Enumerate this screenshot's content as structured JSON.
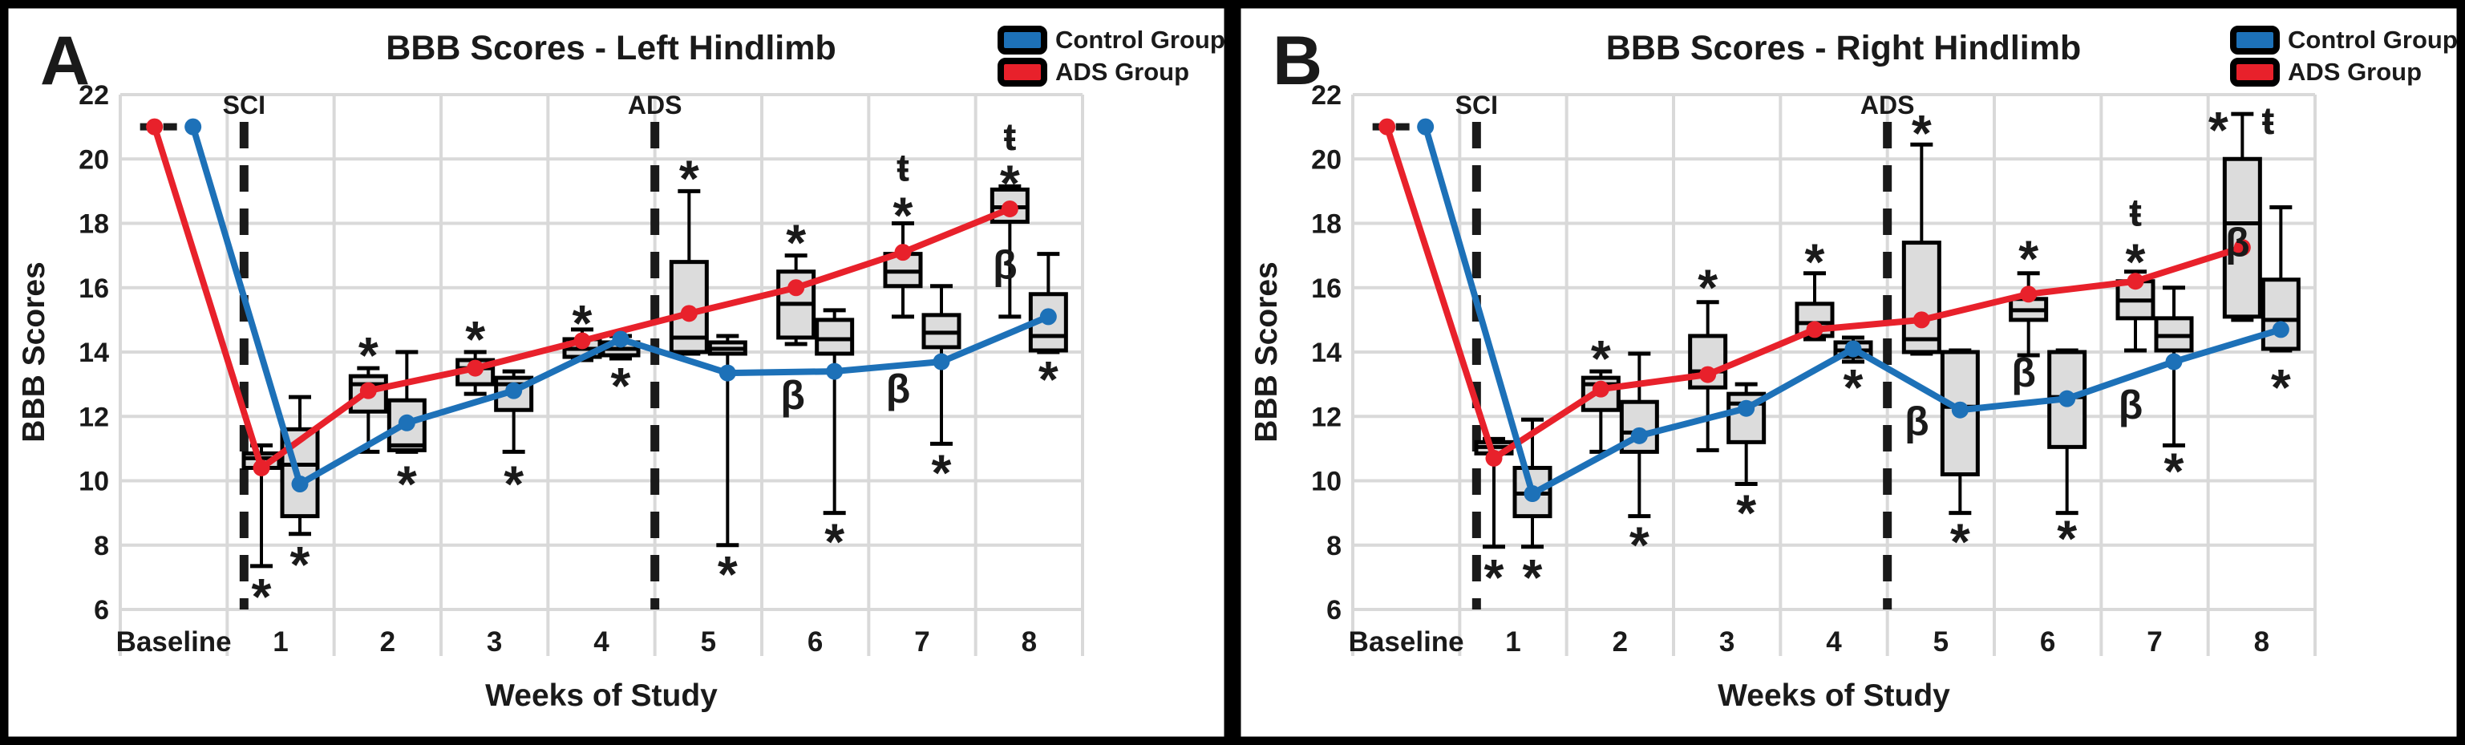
{
  "figure": {
    "background": "#ffffff",
    "border_color": "#000000"
  },
  "colors": {
    "control": "#1d71b8",
    "ads": "#e8212b",
    "box_fill": "#dcdcdc",
    "box_stroke": "#000000",
    "grid": "#d9d9d9",
    "text": "#1a1a1a"
  },
  "legend": {
    "items": [
      {
        "key": "control",
        "label": "Control Group"
      },
      {
        "key": "ads",
        "label": "ADS Group"
      }
    ]
  },
  "chart_data": [
    {
      "type": "line+box",
      "panel_letter": "A",
      "title": "BBB Scores - Left Hindlimb",
      "xlabel": "Weeks of Study",
      "ylabel": "BBB Scores",
      "categories": [
        "Baseline",
        "1",
        "2",
        "3",
        "4",
        "5",
        "6",
        "7",
        "8"
      ],
      "ylim": [
        6,
        22
      ],
      "yticks": [
        22,
        20,
        18,
        16,
        14,
        12,
        10,
        8,
        6
      ],
      "grid": true,
      "legend_position": "top-right",
      "event_lines": [
        {
          "label": "SCI",
          "after_category": 0,
          "offset": 21
        },
        {
          "label": "ADS",
          "after_category": 4,
          "offset": 0
        }
      ],
      "baseline_connector": {
        "value": 21,
        "style": "black-dashed"
      },
      "series": [
        {
          "name": "ADS Group",
          "key": "ads",
          "means": [
            21,
            10.4,
            12.8,
            13.5,
            14.35,
            15.2,
            16.0,
            17.1,
            18.45
          ]
        },
        {
          "name": "Control Group",
          "key": "control",
          "means": [
            21,
            9.9,
            11.8,
            12.8,
            14.4,
            13.35,
            13.4,
            13.7,
            15.1
          ]
        }
      ],
      "boxplots": {
        "ads": [
          {
            "week": 1,
            "q1": 10.4,
            "median": 10.7,
            "q3": 10.85,
            "lo": 7.35,
            "hi": 11.1
          },
          {
            "week": 2,
            "q1": 12.15,
            "median": 13.0,
            "q3": 13.25,
            "lo": 10.9,
            "hi": 13.5
          },
          {
            "week": 3,
            "q1": 13.0,
            "median": 13.5,
            "q3": 13.75,
            "lo": 12.7,
            "hi": 14.0
          },
          {
            "week": 4,
            "q1": 13.85,
            "median": 14.1,
            "q3": 14.4,
            "lo": 13.75,
            "hi": 14.7
          },
          {
            "week": 5,
            "q1": 14.0,
            "median": 14.45,
            "q3": 16.8,
            "lo": 13.95,
            "hi": 19.0
          },
          {
            "week": 6,
            "q1": 14.45,
            "median": 15.5,
            "q3": 16.5,
            "lo": 14.25,
            "hi": 17.0
          },
          {
            "week": 7,
            "q1": 16.05,
            "median": 16.5,
            "q3": 17.05,
            "lo": 15.1,
            "hi": 18.0
          },
          {
            "week": 8,
            "q1": 18.05,
            "median": 18.5,
            "q3": 19.05,
            "lo": 15.1,
            "hi": 19.15
          }
        ],
        "control": [
          {
            "week": 1,
            "q1": 8.9,
            "median": 10.5,
            "q3": 11.6,
            "lo": 8.35,
            "hi": 12.6
          },
          {
            "week": 2,
            "q1": 10.95,
            "median": 11.1,
            "q3": 12.5,
            "lo": 10.9,
            "hi": 14.0
          },
          {
            "week": 3,
            "q1": 12.2,
            "median": 13.0,
            "q3": 13.2,
            "lo": 10.9,
            "hi": 13.4
          },
          {
            "week": 4,
            "q1": 13.9,
            "median": 14.1,
            "q3": 14.3,
            "lo": 13.8,
            "hi": 14.5
          },
          {
            "week": 5,
            "q1": 13.95,
            "median": 14.1,
            "q3": 14.3,
            "lo": 8.0,
            "hi": 14.5
          },
          {
            "week": 6,
            "q1": 13.95,
            "median": 14.4,
            "q3": 15.0,
            "lo": 9.0,
            "hi": 15.3
          },
          {
            "week": 7,
            "q1": 14.15,
            "median": 14.6,
            "q3": 15.15,
            "lo": 11.15,
            "hi": 16.05
          },
          {
            "week": 8,
            "q1": 14.05,
            "median": 14.5,
            "q3": 15.8,
            "lo": 14.0,
            "hi": 17.05
          }
        ]
      },
      "annotations": [
        {
          "week": 1,
          "group": "ads",
          "text": "*",
          "v": 6.7
        },
        {
          "week": 2,
          "group": "ads",
          "text": "*",
          "v": 14.2
        },
        {
          "week": 3,
          "group": "ads",
          "text": "*",
          "v": 14.7
        },
        {
          "week": 4,
          "group": "ads",
          "text": "*",
          "v": 15.2
        },
        {
          "week": 5,
          "group": "ads",
          "text": "*",
          "v": 19.7
        },
        {
          "week": 6,
          "group": "ads",
          "text": "*",
          "v": 17.7
        },
        {
          "week": 7,
          "group": "ads",
          "text": "*",
          "v": 18.55
        },
        {
          "week": 7,
          "group": "ads",
          "text": "ŧ",
          "v": 19.75
        },
        {
          "week": 8,
          "group": "ads",
          "text": "*",
          "v": 19.55
        },
        {
          "week": 8,
          "group": "ads",
          "text": "ŧ",
          "v": 20.7
        },
        {
          "week": 1,
          "group": "control",
          "text": "*",
          "v": 7.7
        },
        {
          "week": 2,
          "group": "control",
          "text": "*",
          "v": 10.2
        },
        {
          "week": 3,
          "group": "control",
          "text": "*",
          "v": 10.2
        },
        {
          "week": 4,
          "group": "control",
          "text": "*",
          "v": 13.25
        },
        {
          "week": 5,
          "group": "control",
          "text": "*",
          "v": 7.4
        },
        {
          "week": 6,
          "group": "control",
          "text": "*",
          "v": 8.4
        },
        {
          "week": 7,
          "group": "control",
          "text": "*",
          "v": 10.55
        },
        {
          "week": 8,
          "group": "control",
          "text": "*",
          "v": 13.45
        },
        {
          "week": 6,
          "group": "control",
          "text": "β",
          "v": 12.6,
          "dx": -52
        },
        {
          "week": 7,
          "group": "control",
          "text": "β",
          "v": 12.8,
          "dx": -54
        },
        {
          "week": 8,
          "group": "control",
          "text": "β",
          "v": 16.65,
          "dx": -54
        }
      ]
    },
    {
      "type": "line+box",
      "panel_letter": "B",
      "title": "BBB Scores - Right Hindlimb",
      "xlabel": "Weeks of Study",
      "ylabel": "BBB Scores",
      "categories": [
        "Baseline",
        "1",
        "2",
        "3",
        "4",
        "5",
        "6",
        "7",
        "8"
      ],
      "ylim": [
        6,
        22
      ],
      "yticks": [
        22,
        20,
        18,
        16,
        14,
        12,
        10,
        8,
        6
      ],
      "grid": true,
      "legend_position": "top-right",
      "event_lines": [
        {
          "label": "SCI",
          "after_category": 0,
          "offset": 21
        },
        {
          "label": "ADS",
          "after_category": 4,
          "offset": 0
        }
      ],
      "baseline_connector": {
        "value": 21,
        "style": "black-dashed"
      },
      "series": [
        {
          "name": "ADS Group",
          "key": "ads",
          "means": [
            21,
            10.7,
            12.85,
            13.3,
            14.7,
            15.0,
            15.8,
            16.2,
            17.25
          ]
        },
        {
          "name": "Control Group",
          "key": "control",
          "means": [
            21,
            9.6,
            11.4,
            12.25,
            14.1,
            12.2,
            12.55,
            13.7,
            14.7
          ]
        }
      ],
      "boxplots": {
        "ads": [
          {
            "week": 1,
            "q1": 10.85,
            "median": 11.05,
            "q3": 11.2,
            "lo": 7.95,
            "hi": 11.3
          },
          {
            "week": 2,
            "q1": 12.2,
            "median": 13.0,
            "q3": 13.2,
            "lo": 10.9,
            "hi": 13.4
          },
          {
            "week": 3,
            "q1": 12.9,
            "median": 13.4,
            "q3": 14.5,
            "lo": 10.95,
            "hi": 15.55
          },
          {
            "week": 4,
            "q1": 14.5,
            "median": 14.9,
            "q3": 15.5,
            "lo": 14.4,
            "hi": 16.45
          },
          {
            "week": 5,
            "q1": 14.0,
            "median": 14.4,
            "q3": 17.4,
            "lo": 13.95,
            "hi": 20.45
          },
          {
            "week": 6,
            "q1": 15.0,
            "median": 15.3,
            "q3": 15.65,
            "lo": 13.9,
            "hi": 16.45
          },
          {
            "week": 7,
            "q1": 15.05,
            "median": 15.6,
            "q3": 16.2,
            "lo": 14.05,
            "hi": 16.5
          },
          {
            "week": 8,
            "q1": 15.1,
            "median": 18.0,
            "q3": 20.0,
            "lo": 15.0,
            "hi": 21.4
          }
        ],
        "control": [
          {
            "week": 1,
            "q1": 8.9,
            "median": 9.6,
            "q3": 10.4,
            "lo": 7.95,
            "hi": 11.9
          },
          {
            "week": 2,
            "q1": 10.9,
            "median": 11.5,
            "q3": 12.45,
            "lo": 8.9,
            "hi": 13.95
          },
          {
            "week": 3,
            "q1": 11.2,
            "median": 12.4,
            "q3": 12.7,
            "lo": 9.9,
            "hi": 13.0
          },
          {
            "week": 4,
            "q1": 13.85,
            "median": 14.05,
            "q3": 14.3,
            "lo": 13.7,
            "hi": 14.45
          },
          {
            "week": 5,
            "q1": 10.2,
            "median": 12.3,
            "q3": 14.0,
            "lo": 9.0,
            "hi": 14.05
          },
          {
            "week": 6,
            "q1": 11.05,
            "median": 12.6,
            "q3": 14.0,
            "lo": 9.0,
            "hi": 14.05
          },
          {
            "week": 7,
            "q1": 14.05,
            "median": 14.5,
            "q3": 15.05,
            "lo": 11.1,
            "hi": 16.0
          },
          {
            "week": 8,
            "q1": 14.1,
            "median": 15.0,
            "q3": 16.25,
            "lo": 14.05,
            "hi": 18.5
          }
        ]
      },
      "annotations": [
        {
          "week": 1,
          "group": "ads",
          "text": "*",
          "v": 7.3
        },
        {
          "week": 2,
          "group": "ads",
          "text": "*",
          "v": 14.1
        },
        {
          "week": 3,
          "group": "ads",
          "text": "*",
          "v": 16.3
        },
        {
          "week": 4,
          "group": "ads",
          "text": "*",
          "v": 17.1
        },
        {
          "week": 5,
          "group": "ads",
          "text": "*",
          "v": 21.1
        },
        {
          "week": 6,
          "group": "ads",
          "text": "*",
          "v": 17.2
        },
        {
          "week": 7,
          "group": "ads",
          "text": "*",
          "v": 17.1
        },
        {
          "week": 7,
          "group": "ads",
          "text": "ŧ",
          "v": 18.35
        },
        {
          "week": 8,
          "group": "ads",
          "text": "*",
          "v": 21.2,
          "dx": -30
        },
        {
          "week": 8,
          "group": "ads",
          "text": "ŧ",
          "v": 21.2,
          "dx": 32
        },
        {
          "week": 1,
          "group": "control",
          "text": "*",
          "v": 7.3
        },
        {
          "week": 2,
          "group": "control",
          "text": "*",
          "v": 8.3
        },
        {
          "week": 3,
          "group": "control",
          "text": "*",
          "v": 9.3
        },
        {
          "week": 4,
          "group": "control",
          "text": "*",
          "v": 13.2
        },
        {
          "week": 5,
          "group": "control",
          "text": "*",
          "v": 8.4
        },
        {
          "week": 6,
          "group": "control",
          "text": "*",
          "v": 8.5
        },
        {
          "week": 7,
          "group": "control",
          "text": "*",
          "v": 10.6
        },
        {
          "week": 8,
          "group": "control",
          "text": "*",
          "v": 13.2
        },
        {
          "week": 5,
          "group": "control",
          "text": "β",
          "v": 11.8,
          "dx": -54
        },
        {
          "week": 6,
          "group": "control",
          "text": "β",
          "v": 13.3,
          "dx": -54
        },
        {
          "week": 7,
          "group": "control",
          "text": "β",
          "v": 12.3,
          "dx": -54
        },
        {
          "week": 8,
          "group": "control",
          "text": "β",
          "v": 17.35,
          "dx": -54
        }
      ]
    }
  ]
}
